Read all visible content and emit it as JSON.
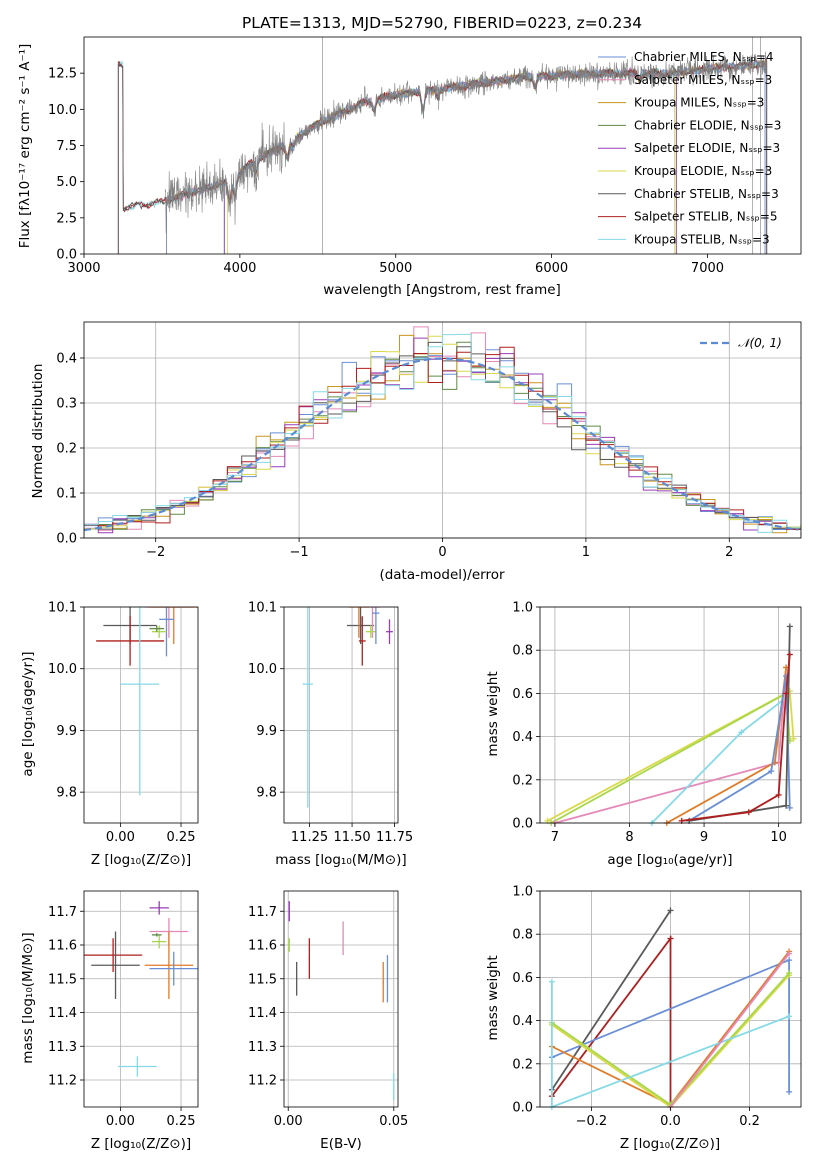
{
  "colors": {
    "Chabrier MILES": "#6a8fd6",
    "Salpeter MILES": "#e589b8",
    "Kroupa MILES": "#c9961e",
    "Chabrier ELODIE": "#5f8a46",
    "Salpeter ELODIE": "#9a3cb8",
    "Kroupa ELODIE": "#d9d94a",
    "Chabrier STELIB": "#5a5a5a",
    "Salpeter STELIB": "#b01f1f",
    "Kroupa STELIB": "#86d9e6",
    "orange": "#e07b28",
    "lime": "#a8d84a"
  },
  "chart_data": [
    {
      "id": "spectrum",
      "type": "line",
      "title": "PLATE=1313, MJD=52790, FIBERID=0223, z=0.234",
      "xlabel": "wavelength [Angstrom, rest frame]",
      "ylabel": "Flux [fλ10⁻¹⁷ erg cm⁻² s⁻¹ A⁻¹]",
      "xlim": [
        3000,
        7600
      ],
      "ylim": [
        0,
        15
      ],
      "xticks": [
        "3000",
        "4000",
        "5000",
        "6000",
        "7000"
      ],
      "yticks": [
        "0.0",
        "2.5",
        "5.0",
        "7.5",
        "10.0",
        "12.5"
      ],
      "legend_position": "upper-right",
      "legend": [
        "Chabrier MILES, Nₛₛₚ=4",
        "Salpeter MILES, Nₛₛₚ=3",
        "Kroupa MILES, Nₛₛₚ=3",
        "Chabrier ELODIE, Nₛₛₚ=3",
        "Salpeter ELODIE, Nₛₛₚ=3",
        "Kroupa ELODIE, Nₛₛₚ=3",
        "Chabrier STELIB, Nₛₛₚ=3",
        "Salpeter STELIB, Nₛₛₚ=5",
        "Kroupa STELIB, Nₛₛₚ=3"
      ],
      "continuum": [
        [
          3250,
          3.2
        ],
        [
          3500,
          3.6
        ],
        [
          3700,
          4.3
        ],
        [
          3900,
          4.9
        ],
        [
          4000,
          5.6
        ],
        [
          4100,
          6.5
        ],
        [
          4300,
          7.6
        ],
        [
          4500,
          9.0
        ],
        [
          4800,
          10.5
        ],
        [
          5000,
          11.0
        ],
        [
          5200,
          11.3
        ],
        [
          5500,
          11.7
        ],
        [
          5800,
          12.2
        ],
        [
          6100,
          12.4
        ],
        [
          6400,
          12.5
        ],
        [
          6800,
          12.5
        ],
        [
          7000,
          12.8
        ],
        [
          7300,
          13.1
        ]
      ]
    },
    {
      "id": "residuals",
      "type": "line",
      "xlabel": "(data-model)/error",
      "ylabel": "Normed distribution",
      "xlim": [
        -2.5,
        2.5
      ],
      "ylim": [
        0,
        0.48
      ],
      "xticks": [
        "−2",
        "−1",
        "0",
        "1",
        "2"
      ],
      "yticks": [
        "0.0",
        "0.1",
        "0.2",
        "0.3",
        "0.4"
      ],
      "legend": [
        "𝒩(0, 1)"
      ],
      "legend_position": "upper-right",
      "bin_width": 0.1
    },
    {
      "id": "age_vs_Z",
      "type": "scatter",
      "xlabel": "Z [log₁₀(Z/Z⊙)]",
      "ylabel": "age  [log₁₀(age/yr)]",
      "xlim": [
        -0.15,
        0.32
      ],
      "ylim": [
        9.75,
        10.1
      ],
      "xticks": [
        "0.00",
        "0.25"
      ],
      "yticks": [
        "9.8",
        "9.9",
        "10.0",
        "10.1"
      ],
      "points": [
        {
          "c": "Chabrier STELIB",
          "x": 0.04,
          "y": 10.07,
          "ex": 0.11,
          "ey": 0.03
        },
        {
          "c": "Salpeter STELIB",
          "x": 0.04,
          "y": 10.045,
          "ex": 0.14,
          "ey": 0.04
        },
        {
          "c": "Salpeter MILES",
          "x": 0.2,
          "y": 10.1,
          "ex": 0.1,
          "ey": 0.05
        },
        {
          "c": "orange",
          "x": 0.22,
          "y": 10.1,
          "ex": 0.1,
          "ey": 0.06
        },
        {
          "c": "Chabrier MILES",
          "x": 0.19,
          "y": 10.08,
          "ex": 0.03,
          "ey": 0.06
        },
        {
          "c": "lime",
          "x": 0.16,
          "y": 10.06,
          "ex": 0.03,
          "ey": 0.01
        },
        {
          "c": "Chabrier ELODIE",
          "x": 0.15,
          "y": 10.065,
          "ex": 0.03,
          "ey": 0.005
        },
        {
          "c": "Kroupa STELIB",
          "x": 0.08,
          "y": 9.975,
          "ex": 0.08,
          "ey": 0.18
        }
      ]
    },
    {
      "id": "age_vs_mass",
      "type": "scatter",
      "xlabel": "mass [log₁₀(M/M⊙)]",
      "ylabel": "",
      "xlim": [
        11.1,
        11.77
      ],
      "ylim": [
        9.75,
        10.1
      ],
      "xticks": [
        "11.25",
        "11.50",
        "11.75"
      ],
      "yticks": [
        "9.8",
        "9.9",
        "10.0",
        "10.1"
      ],
      "points": [
        {
          "c": "Chabrier STELIB",
          "x": 11.55,
          "y": 10.07,
          "ex": 0.08,
          "ey": 0.03
        },
        {
          "c": "Salpeter STELIB",
          "x": 11.56,
          "y": 10.045,
          "ex": 0.02,
          "ey": 0.04
        },
        {
          "c": "Salpeter MILES",
          "x": 11.62,
          "y": 10.1,
          "ex": 0.05,
          "ey": 0.05
        },
        {
          "c": "orange",
          "x": 11.54,
          "y": 10.1,
          "ex": 0.06,
          "ey": 0.05
        },
        {
          "c": "Salpeter ELODIE",
          "x": 11.72,
          "y": 10.06,
          "ex": 0.02,
          "ey": 0.02
        },
        {
          "c": "lime",
          "x": 11.61,
          "y": 10.06,
          "ex": 0.03,
          "ey": 0.01
        },
        {
          "c": "Chabrier MILES",
          "x": 11.64,
          "y": 10.09,
          "ex": 0.02,
          "ey": 0.05
        },
        {
          "c": "Kroupa STELIB",
          "x": 11.24,
          "y": 9.975,
          "ex": 0.03,
          "ey": 0.2
        }
      ]
    },
    {
      "id": "massweight_vs_age",
      "type": "line",
      "xlabel": "age  [log₁₀(age/yr)]",
      "ylabel": "mass weight",
      "xlim": [
        6.8,
        10.3
      ],
      "ylim": [
        0,
        1
      ],
      "xticks": [
        "7",
        "8",
        "9",
        "10"
      ],
      "yticks": [
        "0.0",
        "0.2",
        "0.4",
        "0.6",
        "0.8",
        "1.0"
      ],
      "series": [
        {
          "c": "Kroupa ELODIE",
          "pts": [
            [
              6.9,
              0.01
            ],
            [
              10.15,
              0.61
            ],
            [
              10.2,
              0.39
            ]
          ]
        },
        {
          "c": "lime",
          "pts": [
            [
              6.95,
              0.0
            ],
            [
              10.1,
              0.6
            ],
            [
              10.15,
              0.38
            ]
          ]
        },
        {
          "c": "Salpeter MILES",
          "pts": [
            [
              7.0,
              0.0
            ],
            [
              10.0,
              0.28
            ],
            [
              10.1,
              0.72
            ]
          ]
        },
        {
          "c": "Kroupa STELIB",
          "pts": [
            [
              8.3,
              0.0
            ],
            [
              9.5,
              0.42
            ],
            [
              10.1,
              0.58
            ]
          ]
        },
        {
          "c": "orange",
          "pts": [
            [
              8.5,
              0.0
            ],
            [
              9.95,
              0.28
            ],
            [
              10.1,
              0.72
            ]
          ]
        },
        {
          "c": "Chabrier MILES",
          "pts": [
            [
              8.8,
              0.01
            ],
            [
              9.9,
              0.24
            ],
            [
              10.1,
              0.68
            ],
            [
              10.15,
              0.07
            ]
          ]
        },
        {
          "c": "Chabrier STELIB",
          "pts": [
            [
              8.8,
              0.01
            ],
            [
              10.1,
              0.08
            ],
            [
              10.15,
              0.91
            ]
          ]
        },
        {
          "c": "Salpeter STELIB",
          "pts": [
            [
              8.7,
              0.01
            ],
            [
              9.6,
              0.05
            ],
            [
              10.0,
              0.13
            ],
            [
              10.1,
              0.6
            ],
            [
              10.15,
              0.78
            ]
          ]
        }
      ]
    },
    {
      "id": "mass_vs_Z",
      "type": "scatter",
      "xlabel": "Z [log₁₀(Z/Z⊙)]",
      "ylabel": "mass [log₁₀(M/M⊙)]",
      "xlim": [
        -0.15,
        0.32
      ],
      "ylim": [
        11.12,
        11.76
      ],
      "xticks": [
        "0.00",
        "0.25"
      ],
      "yticks": [
        "11.2",
        "11.3",
        "11.4",
        "11.5",
        "11.6",
        "11.7"
      ],
      "points": [
        {
          "c": "Salpeter ELODIE",
          "x": 0.16,
          "y": 11.71,
          "ex": 0.04,
          "ey": 0.02
        },
        {
          "c": "Salpeter MILES",
          "x": 0.2,
          "y": 11.64,
          "ex": 0.08,
          "ey": 0.04
        },
        {
          "c": "lime",
          "x": 0.16,
          "y": 11.61,
          "ex": 0.03,
          "ey": 0.02
        },
        {
          "c": "Chabrier ELODIE",
          "x": 0.15,
          "y": 11.63,
          "ex": 0.02,
          "ey": 0.005
        },
        {
          "c": "Salpeter STELIB",
          "x": -0.03,
          "y": 11.57,
          "ex": 0.12,
          "ey": 0.05
        },
        {
          "c": "Chabrier STELIB",
          "x": -0.02,
          "y": 11.54,
          "ex": 0.1,
          "ey": 0.1
        },
        {
          "c": "orange",
          "x": 0.2,
          "y": 11.54,
          "ex": 0.1,
          "ey": 0.1
        },
        {
          "c": "Chabrier MILES",
          "x": 0.22,
          "y": 11.53,
          "ex": 0.1,
          "ey": 0.05
        },
        {
          "c": "Kroupa STELIB",
          "x": 0.07,
          "y": 11.24,
          "ex": 0.08,
          "ey": 0.03
        }
      ]
    },
    {
      "id": "mass_vs_EBV",
      "type": "scatter",
      "xlabel": "E(B-V)",
      "ylabel": "",
      "xlim": [
        -0.002,
        0.052
      ],
      "ylim": [
        11.12,
        11.76
      ],
      "xticks": [
        "0.00",
        "0.05"
      ],
      "yticks": [
        "11.2",
        "11.3",
        "11.4",
        "11.5",
        "11.6",
        "11.7"
      ],
      "points": [
        {
          "c": "Salpeter ELODIE",
          "x": 0.0005,
          "y": 11.7,
          "ex": 0.0003,
          "ey": 0.03
        },
        {
          "c": "lime",
          "x": 0.0005,
          "y": 11.6,
          "ex": 0.0003,
          "ey": 0.02
        },
        {
          "c": "Salpeter MILES",
          "x": 0.026,
          "y": 11.62,
          "ex": 0.0003,
          "ey": 0.05
        },
        {
          "c": "Salpeter STELIB",
          "x": 0.01,
          "y": 11.56,
          "ex": 0.0003,
          "ey": 0.06
        },
        {
          "c": "Chabrier STELIB",
          "x": 0.004,
          "y": 11.5,
          "ex": 0.0003,
          "ey": 0.05
        },
        {
          "c": "orange",
          "x": 0.045,
          "y": 11.49,
          "ex": 0.0003,
          "ey": 0.06
        },
        {
          "c": "Chabrier MILES",
          "x": 0.047,
          "y": 11.5,
          "ex": 0.0003,
          "ey": 0.07
        },
        {
          "c": "Kroupa STELIB",
          "x": 0.05,
          "y": 11.18,
          "ex": 0.0003,
          "ey": 0.04
        }
      ]
    },
    {
      "id": "massweight_vs_Z",
      "type": "line",
      "xlabel": "Z [log₁₀(Z/Z⊙)]",
      "ylabel": "mass weight",
      "xlim": [
        -0.33,
        0.33
      ],
      "ylim": [
        0,
        1
      ],
      "xticks": [
        "−0.2",
        "0.0",
        "0.2"
      ],
      "yticks": [
        "0.0",
        "0.2",
        "0.4",
        "0.6",
        "0.8",
        "1.0"
      ],
      "series": [
        {
          "c": "Chabrier STELIB",
          "pts": [
            [
              -0.3,
              0.08
            ],
            [
              0.0,
              0.91
            ]
          ]
        },
        {
          "c": "Salpeter STELIB",
          "pts": [
            [
              -0.3,
              0.05
            ],
            [
              0.0,
              0.78
            ],
            [
              0.0,
              0.01
            ]
          ]
        },
        {
          "c": "Chabrier MILES",
          "pts": [
            [
              -0.3,
              0.23
            ],
            [
              0.3,
              0.68
            ],
            [
              0.3,
              0.07
            ]
          ]
        },
        {
          "c": "orange",
          "pts": [
            [
              -0.3,
              0.28
            ],
            [
              0.0,
              0.01
            ],
            [
              0.3,
              0.72
            ]
          ]
        },
        {
          "c": "Kroupa ELODIE",
          "pts": [
            [
              -0.3,
              0.38
            ],
            [
              0.0,
              0.0
            ],
            [
              0.3,
              0.61
            ]
          ]
        },
        {
          "c": "lime",
          "pts": [
            [
              -0.3,
              0.39
            ],
            [
              0.0,
              0.01
            ],
            [
              0.3,
              0.62
            ]
          ]
        },
        {
          "c": "Kroupa STELIB",
          "pts": [
            [
              -0.3,
              0.58
            ],
            [
              -0.3,
              0.0
            ],
            [
              0.3,
              0.42
            ]
          ]
        },
        {
          "c": "Salpeter MILES",
          "pts": [
            [
              0.0,
              0.0
            ],
            [
              0.3,
              0.71
            ]
          ]
        }
      ]
    }
  ]
}
